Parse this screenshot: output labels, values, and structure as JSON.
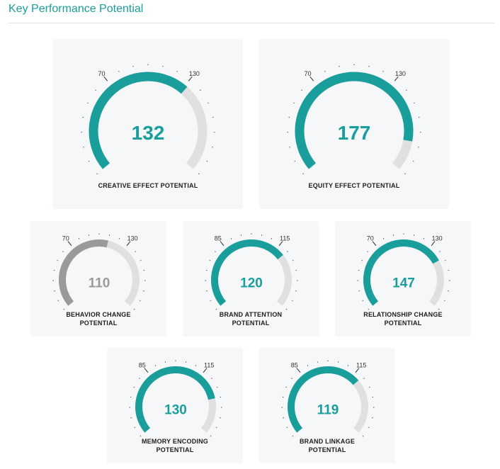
{
  "header": {
    "title": "Key Performance Potential"
  },
  "colors": {
    "accent": "#1a9e9c",
    "neutral": "#9a9a9a",
    "track": "#e0e0e0",
    "card_bg": "#f5f7f8"
  },
  "chart_data": [
    {
      "type": "gauge",
      "name": "creative",
      "label_lines": [
        "CREATIVE EFFECT POTENTIAL"
      ],
      "value": 132,
      "value_label": "132",
      "low_threshold": 70,
      "high_threshold": 130,
      "low_label": "70",
      "high_label": "130",
      "range": [
        0,
        200
      ],
      "status": "accent"
    },
    {
      "type": "gauge",
      "name": "equity",
      "label_lines": [
        "EQUITY EFFECT POTENTIAL"
      ],
      "value": 177,
      "value_label": "177",
      "low_threshold": 70,
      "high_threshold": 130,
      "low_label": "70",
      "high_label": "130",
      "range": [
        0,
        200
      ],
      "status": "accent"
    },
    {
      "type": "gauge",
      "name": "behavior",
      "label_lines": [
        "BEHAVIOR CHANGE",
        "POTENTIAL"
      ],
      "value": 110,
      "value_label": "110",
      "low_threshold": 70,
      "high_threshold": 130,
      "low_label": "70",
      "high_label": "130",
      "range": [
        0,
        200
      ],
      "status": "neutral"
    },
    {
      "type": "gauge",
      "name": "brand-attention",
      "label_lines": [
        "BRAND ATTENTION",
        "POTENTIAL"
      ],
      "value": 120,
      "value_label": "120",
      "low_threshold": 85,
      "high_threshold": 115,
      "low_label": "85",
      "high_label": "115",
      "range": [
        50,
        150
      ],
      "status": "accent"
    },
    {
      "type": "gauge",
      "name": "relationship",
      "label_lines": [
        "RELATIONSHIP CHANGE",
        "POTENTIAL"
      ],
      "value": 147,
      "value_label": "147",
      "low_threshold": 70,
      "high_threshold": 130,
      "low_label": "70",
      "high_label": "130",
      "range": [
        0,
        200
      ],
      "status": "accent"
    },
    {
      "type": "gauge",
      "name": "memory-encoding",
      "label_lines": [
        "MEMORY ENCODING",
        "POTENTIAL"
      ],
      "value": 130,
      "value_label": "130",
      "low_threshold": 85,
      "high_threshold": 115,
      "low_label": "85",
      "high_label": "115",
      "range": [
        50,
        150
      ],
      "status": "accent"
    },
    {
      "type": "gauge",
      "name": "brand-linkage",
      "label_lines": [
        "BRAND LINKAGE",
        "POTENTIAL"
      ],
      "value": 119,
      "value_label": "119",
      "low_threshold": 85,
      "high_threshold": 115,
      "low_label": "85",
      "high_label": "115",
      "range": [
        50,
        150
      ],
      "status": "accent"
    }
  ]
}
